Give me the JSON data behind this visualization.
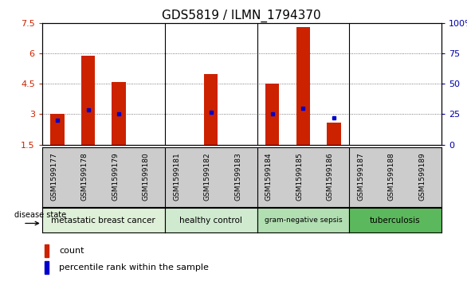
{
  "title": "GDS5819 / ILMN_1794370",
  "samples": [
    "GSM1599177",
    "GSM1599178",
    "GSM1599179",
    "GSM1599180",
    "GSM1599181",
    "GSM1599182",
    "GSM1599183",
    "GSM1599184",
    "GSM1599185",
    "GSM1599186",
    "GSM1599187",
    "GSM1599188",
    "GSM1599189"
  ],
  "count_values": [
    3.0,
    5.9,
    4.6,
    1.5,
    1.5,
    5.0,
    1.5,
    4.5,
    7.3,
    2.6,
    1.5,
    1.5,
    1.5
  ],
  "percentile_values": [
    2.7,
    3.2,
    3.0,
    1.5,
    1.5,
    3.1,
    1.5,
    3.0,
    3.3,
    2.8,
    1.5,
    1.5,
    1.5
  ],
  "percentile_has_marker": [
    true,
    true,
    true,
    false,
    false,
    true,
    false,
    true,
    true,
    true,
    false,
    false,
    false
  ],
  "count_has_bar": [
    true,
    true,
    true,
    false,
    false,
    true,
    false,
    true,
    true,
    true,
    false,
    false,
    false
  ],
  "y_min": 1.5,
  "y_max": 7.5,
  "y_ticks": [
    1.5,
    3.0,
    4.5,
    6.0,
    7.5
  ],
  "y_tick_labels": [
    "1.5",
    "3",
    "4.5",
    "6",
    "7.5"
  ],
  "y2_ticks_val": [
    1.5,
    3.0,
    4.5,
    6.0,
    7.5
  ],
  "y2_tick_labels": [
    "0",
    "25",
    "50",
    "75",
    "100%"
  ],
  "disease_groups": [
    {
      "label": "metastatic breast cancer",
      "start": 0,
      "end": 3,
      "color": "#dff0d8"
    },
    {
      "label": "healthy control",
      "start": 4,
      "end": 6,
      "color": "#d0ead0"
    },
    {
      "label": "gram-negative sepsis",
      "start": 7,
      "end": 9,
      "color": "#b2dfb2"
    },
    {
      "label": "tuberculosis",
      "start": 10,
      "end": 12,
      "color": "#5cb85c"
    }
  ],
  "bar_color": "#cc2200",
  "marker_color": "#0000cc",
  "grid_color": "#555555",
  "ylabel_color": "#cc2200",
  "y2label_color": "#0000aa",
  "sample_label_bg": "#cccccc",
  "group_separator_color": "#000000"
}
